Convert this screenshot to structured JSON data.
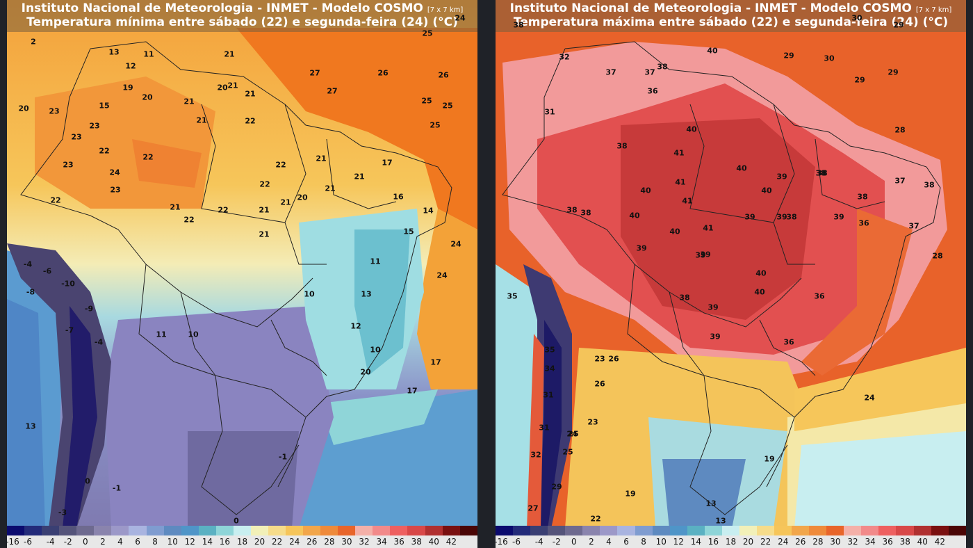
{
  "panels": [
    {
      "id": "min",
      "title_line1": "Instituto Nacional de Meteorologia - INMET - Modelo COSMO",
      "title_res": "[7 x 7 km]",
      "title_line2": "Temperatura mínima entre sábado (22) e segunda-feira (24) (°C)",
      "labels": [
        "13",
        "11",
        "12",
        "19",
        "20",
        "15",
        "20",
        "23",
        "23",
        "23",
        "22",
        "23",
        "24",
        "23",
        "22",
        "22",
        "21",
        "22",
        "21",
        "20",
        "21",
        "21",
        "22",
        "22",
        "22",
        "21",
        "27",
        "26",
        "26",
        "27",
        "25",
        "25",
        "25",
        "21",
        "21",
        "21",
        "17",
        "16",
        "14",
        "15",
        "20",
        "21",
        "21",
        "21",
        "21",
        "22",
        "24",
        "24",
        "11",
        "13",
        "12",
        "10",
        "10",
        "17",
        "20",
        "17",
        "-4",
        "-6",
        "-10",
        "-9",
        "-4",
        "-7",
        "11",
        "10",
        "13",
        "-8",
        "0",
        "-1",
        "-3",
        "-1",
        "0",
        "2",
        "25",
        "24"
      ]
    },
    {
      "id": "max",
      "title_line1": "Instituto Nacional de Meteorologia - INMET - Modelo COSMO",
      "title_res": "[7 x 7 km]",
      "title_line2": "Temperatura máxima entre sábado (22) e segunda-feira (24) (°C)",
      "labels": [
        "38",
        "32",
        "37",
        "37",
        "38",
        "36",
        "31",
        "40",
        "29",
        "30",
        "29",
        "29",
        "28",
        "40",
        "38",
        "41",
        "40",
        "40",
        "40",
        "39",
        "39",
        "38",
        "38",
        "38",
        "37",
        "38",
        "40",
        "41",
        "41",
        "40",
        "41",
        "39",
        "39",
        "38",
        "39",
        "39",
        "38",
        "38",
        "36",
        "37",
        "39",
        "40",
        "40",
        "38",
        "39",
        "39",
        "36",
        "28",
        "35",
        "35",
        "34",
        "31",
        "31",
        "32",
        "27",
        "29",
        "25",
        "24",
        "23",
        "26",
        "26",
        "23",
        "19",
        "22",
        "25",
        "24",
        "19",
        "13",
        "13",
        "36",
        "30",
        "29"
      ]
    }
  ],
  "colorbar": {
    "ticks": [
      "-16",
      "-6",
      "-4",
      "-2",
      "0",
      "2",
      "4",
      "6",
      "8",
      "10",
      "12",
      "14",
      "16",
      "18",
      "20",
      "22",
      "24",
      "26",
      "28",
      "30",
      "32",
      "34",
      "36",
      "38",
      "40",
      "42"
    ],
    "colors": [
      "#0b0b6e",
      "#232b7a",
      "#3a3f73",
      "#55547a",
      "#6e6a8f",
      "#8a84ad",
      "#9c98c8",
      "#a9b4e0",
      "#7f9cd0",
      "#5e8ac0",
      "#4f95c8",
      "#5ab1c2",
      "#8ed5d8",
      "#c8eef0",
      "#f2f0b8",
      "#f6dc8a",
      "#f6c55a",
      "#f2a64a",
      "#ef8a3a",
      "#e8652a",
      "#f4b0a8",
      "#f28a8a",
      "#ee6060",
      "#d84848",
      "#b03030",
      "#7a1010",
      "#4a0606"
    ]
  },
  "colors": {
    "ocean_warm": "#f07a20",
    "land_warm": "#f5b043",
    "cold_andes": "#3d3a6a",
    "hot_core": "#c83838"
  }
}
